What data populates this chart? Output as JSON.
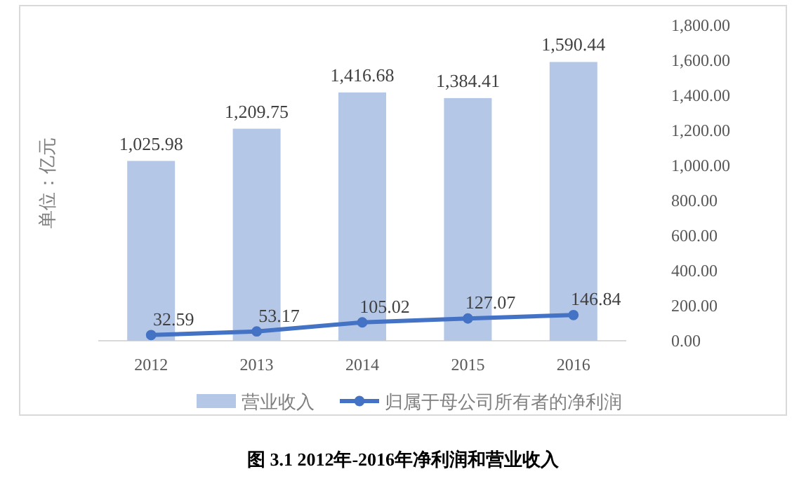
{
  "chart_data": {
    "type": "bar",
    "title": "图 3.1 2012年-2016年净利润和营业收入",
    "ylabel": "单位：亿元",
    "categories": [
      "2012",
      "2013",
      "2014",
      "2015",
      "2016"
    ],
    "series": [
      {
        "name": "营业收入",
        "color": "#b4c7e7",
        "values": [
          1025.98,
          1209.75,
          1416.68,
          1384.41,
          1590.44
        ],
        "value_labels": [
          "1,025.98",
          "1,209.75",
          "1,416.68",
          "1,384.41",
          "1,590.44"
        ]
      },
      {
        "name": "归属于母公司所有者的净利润",
        "type": "line",
        "color": "#4472c4",
        "values": [
          32.59,
          53.17,
          105.02,
          127.07,
          146.84
        ],
        "value_labels": [
          "32.59",
          "53.17",
          "105.02",
          "127.07",
          "146.84"
        ]
      }
    ],
    "ylim": [
      0,
      1800
    ],
    "yticks": [
      {
        "value": 0,
        "label": "0.00"
      },
      {
        "value": 200,
        "label": "200.00"
      },
      {
        "value": 400,
        "label": "400.00"
      },
      {
        "value": 600,
        "label": "600.00"
      },
      {
        "value": 800,
        "label": "800.00"
      },
      {
        "value": 1000,
        "label": "1,000.00"
      },
      {
        "value": 1200,
        "label": "1,200.00"
      },
      {
        "value": 1400,
        "label": "1,400.00"
      },
      {
        "value": 1600,
        "label": "1,600.00"
      },
      {
        "value": 1800,
        "label": "1,800.00"
      }
    ],
    "legend": "bottom",
    "marker": "circle",
    "line_style": "solid"
  }
}
